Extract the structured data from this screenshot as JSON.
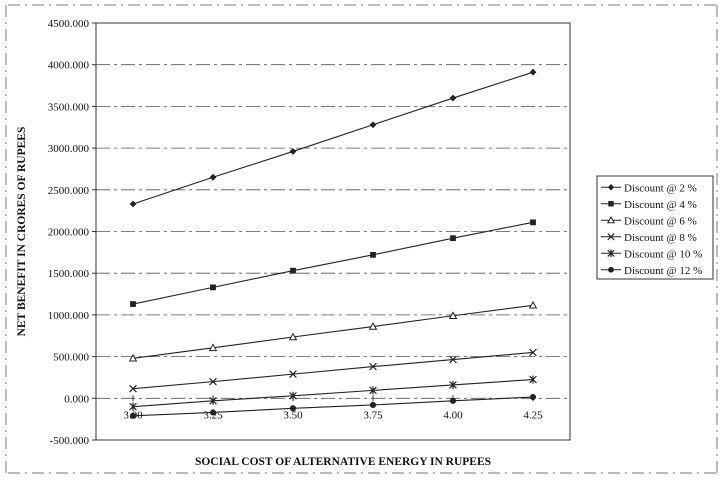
{
  "chart_data": {
    "type": "line",
    "title": "",
    "xlabel": "SOCIAL COST OF ALTERNATIVE ENERGY IN RUPEES",
    "ylabel": "NET BENEFIT IN CRORES OF RUPEES",
    "x": [
      3.0,
      3.25,
      3.5,
      3.75,
      4.0,
      4.25
    ],
    "x_tick_labels": [
      "3.00",
      "3.25",
      "3.50",
      "3.75",
      "4.00",
      "4.25"
    ],
    "ylim": [
      -500,
      4500
    ],
    "y_ticks": [
      -500,
      0,
      500,
      1000,
      1500,
      2000,
      2500,
      3000,
      3500,
      4000,
      4500
    ],
    "y_tick_labels": [
      "-500.000",
      "0.000",
      "500.000",
      "1000.000",
      "1500.000",
      "2000.000",
      "2500.000",
      "3000.000",
      "3500.000",
      "4000.000",
      "4500.000"
    ],
    "grid": "horizontal dashed",
    "legend_position": "right",
    "series": [
      {
        "name": "Discount @ 2 %",
        "marker": "diamond-filled",
        "values": [
          2330,
          2650,
          2960,
          3280,
          3600,
          3910
        ]
      },
      {
        "name": "Discount @ 4 %",
        "marker": "square-filled",
        "values": [
          1130,
          1330,
          1530,
          1720,
          1920,
          2110
        ]
      },
      {
        "name": "Discount @ 6 %",
        "marker": "triangle-open",
        "values": [
          480,
          605,
          735,
          860,
          990,
          1115
        ]
      },
      {
        "name": "Discount @ 8 %",
        "marker": "x",
        "values": [
          115,
          200,
          290,
          380,
          465,
          550
        ]
      },
      {
        "name": "Discount @ 10 %",
        "marker": "star",
        "values": [
          -100,
          -30,
          30,
          95,
          160,
          225
        ]
      },
      {
        "name": "Discount @ 12 %",
        "marker": "circle-filled",
        "values": [
          -210,
          -170,
          -120,
          -80,
          -30,
          15
        ]
      }
    ],
    "colors": {
      "line": "#222222",
      "grid": "#555555",
      "background": "#ffffff"
    }
  }
}
